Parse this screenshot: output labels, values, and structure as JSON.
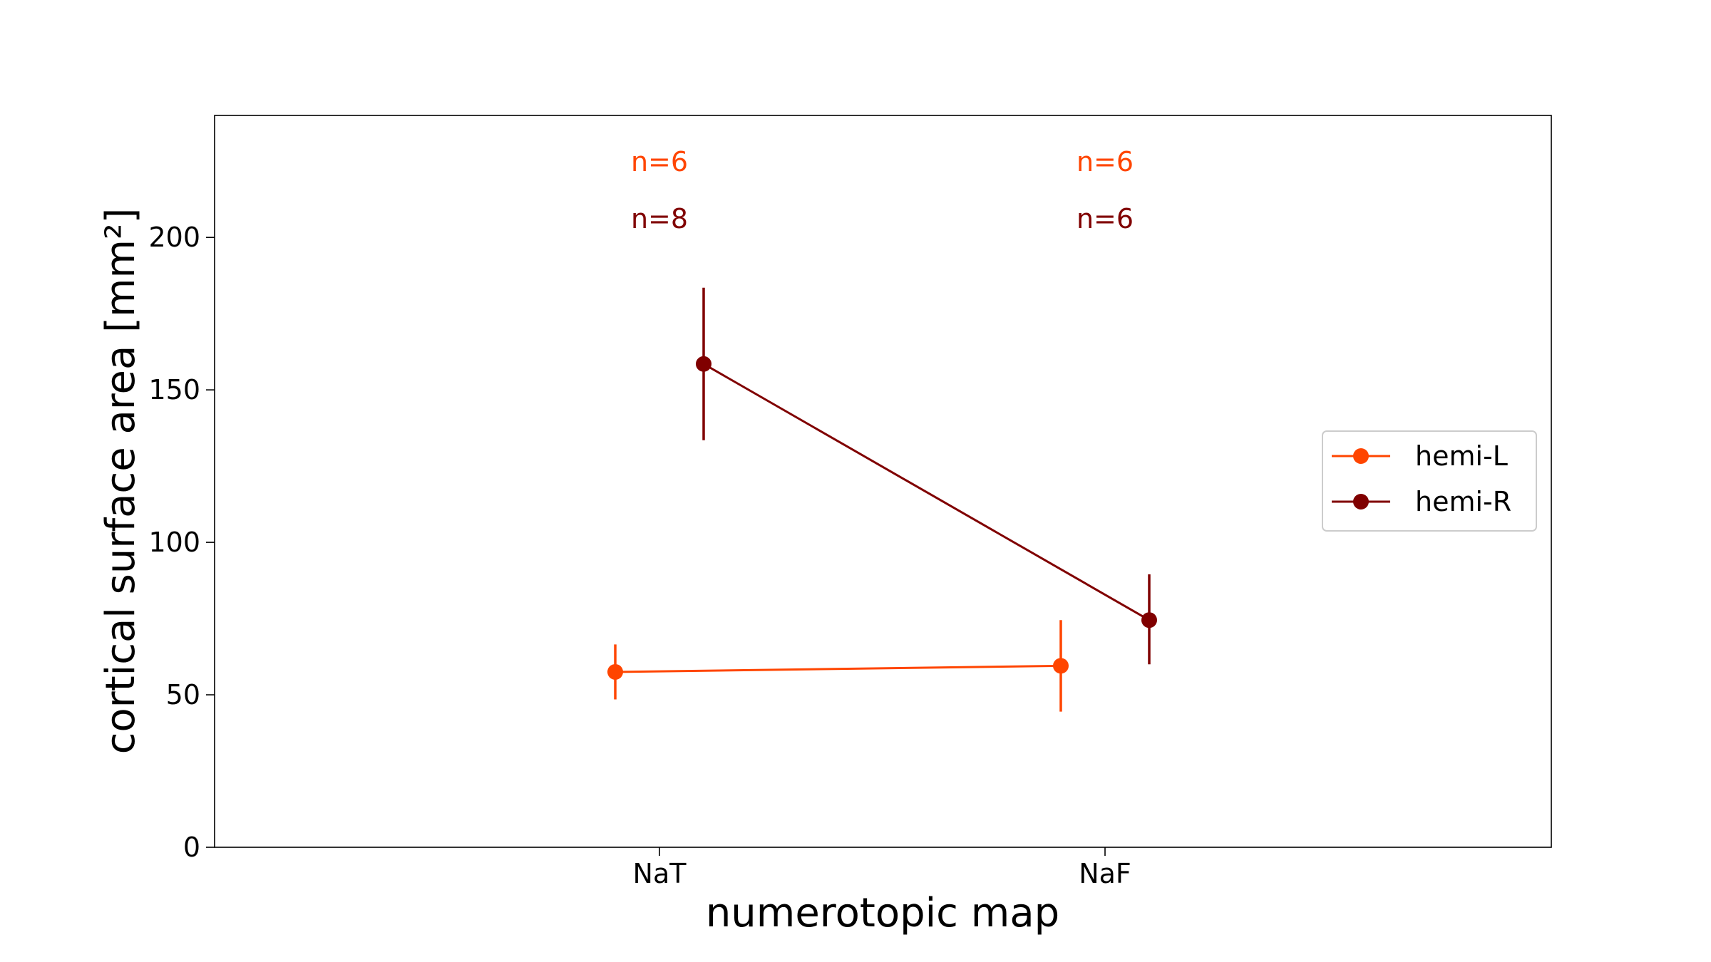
{
  "chart_data": {
    "type": "line",
    "xlabel": "numerotopic map",
    "ylabel": "cortical surface area [mm²]",
    "categories": [
      "NaT",
      "NaF"
    ],
    "ylim": [
      0,
      240
    ],
    "yticks": [
      0,
      50,
      100,
      150,
      200
    ],
    "grid": false,
    "legend": "center-right",
    "series": [
      {
        "name": "hemi-L",
        "color": "#ff4500",
        "values": [
          57.5,
          59.5
        ],
        "err_low": [
          48.5,
          44.5
        ],
        "err_high": [
          66.5,
          74.5
        ],
        "n_labels": [
          "n=6",
          "n=6"
        ]
      },
      {
        "name": "hemi-R",
        "color": "#800000",
        "values": [
          158.5,
          74.5
        ],
        "err_low": [
          133.5,
          60
        ],
        "err_high": [
          183.5,
          89.5
        ],
        "n_labels": [
          "n=8",
          "n=6"
        ]
      }
    ]
  }
}
